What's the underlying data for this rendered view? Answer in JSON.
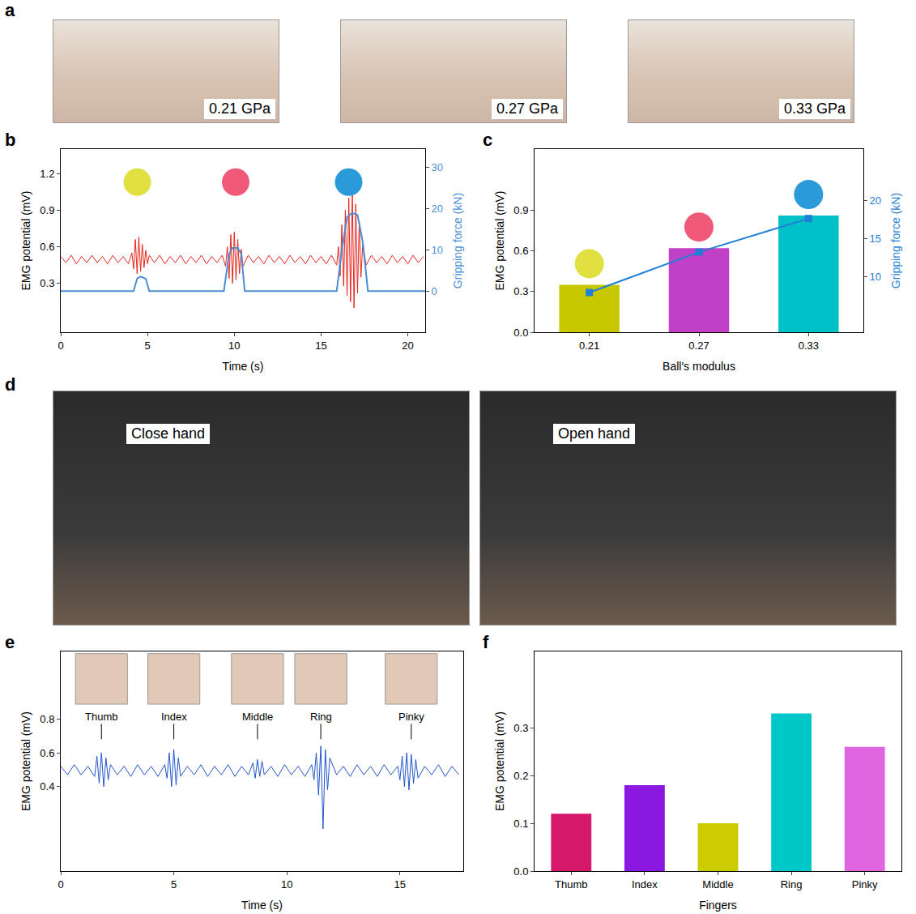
{
  "photo_panels": [
    {
      "panel_label": "a",
      "photos": [
        {
          "label": "0.21 GPa"
        },
        {
          "label": "0.27 GPa"
        },
        {
          "label": "0.33 GPa"
        }
      ]
    },
    {
      "panel_label": "d",
      "photos": [
        {
          "label": "Close hand"
        },
        {
          "label": "Open hand"
        }
      ]
    }
  ],
  "chart_data": [
    {
      "panel_label": "b",
      "type": "line",
      "x_label": "Time (s)",
      "y_label": "EMG potential (mV)",
      "y2_label": "Gripping force (kN)",
      "xlim": [
        0,
        21
      ],
      "xticks": [
        0,
        5,
        10,
        15,
        20
      ],
      "ylim": [
        -0.1,
        1.4
      ],
      "yticks": [
        0.3,
        0.6,
        0.9,
        1.2
      ],
      "y2lim": [
        -10,
        34.5
      ],
      "y2ticks": [
        0,
        10,
        20,
        30
      ],
      "grid": false,
      "series": [
        {
          "color": "#e8231b",
          "x": [
            0,
            0.3,
            0.6,
            0.9,
            1.2,
            1.5,
            1.8,
            2.1,
            2.4,
            2.7,
            3.0,
            3.3,
            3.6,
            3.9,
            4.1,
            4.2,
            4.3,
            4.4,
            4.5,
            4.6,
            4.7,
            4.8,
            4.9,
            5.0,
            5.1,
            5.4,
            5.7,
            6.0,
            6.3,
            6.6,
            6.9,
            7.2,
            7.5,
            7.8,
            8.1,
            8.4,
            8.7,
            9.0,
            9.3,
            9.5,
            9.6,
            9.7,
            9.8,
            9.9,
            10.0,
            10.1,
            10.2,
            10.3,
            10.4,
            10.5,
            10.8,
            11.1,
            11.4,
            11.7,
            12.0,
            12.3,
            12.6,
            12.9,
            13.2,
            13.5,
            13.8,
            14.1,
            14.4,
            14.7,
            15.0,
            15.3,
            15.6,
            15.9,
            16.0,
            16.1,
            16.2,
            16.3,
            16.4,
            16.5,
            16.6,
            16.7,
            16.8,
            16.9,
            17.0,
            17.1,
            17.2,
            17.3,
            17.4,
            17.6,
            17.9,
            18.2,
            18.5,
            18.8,
            19.1,
            19.4,
            19.7,
            20.0,
            20.3,
            20.6,
            20.9
          ],
          "values": [
            0.52,
            0.47,
            0.53,
            0.46,
            0.52,
            0.47,
            0.53,
            0.47,
            0.52,
            0.46,
            0.53,
            0.47,
            0.52,
            0.46,
            0.55,
            0.42,
            0.66,
            0.38,
            0.68,
            0.4,
            0.62,
            0.43,
            0.57,
            0.46,
            0.53,
            0.47,
            0.53,
            0.46,
            0.52,
            0.47,
            0.53,
            0.46,
            0.52,
            0.47,
            0.53,
            0.46,
            0.52,
            0.47,
            0.53,
            0.44,
            0.6,
            0.34,
            0.7,
            0.3,
            0.72,
            0.33,
            0.66,
            0.38,
            0.58,
            0.44,
            0.53,
            0.47,
            0.52,
            0.46,
            0.53,
            0.47,
            0.52,
            0.46,
            0.53,
            0.47,
            0.52,
            0.46,
            0.53,
            0.47,
            0.52,
            0.46,
            0.53,
            0.45,
            0.6,
            0.36,
            0.78,
            0.28,
            0.9,
            0.2,
            1.0,
            0.15,
            1.05,
            0.1,
            0.95,
            0.22,
            0.8,
            0.35,
            0.62,
            0.45,
            0.53,
            0.47,
            0.52,
            0.46,
            0.53,
            0.47,
            0.52,
            0.46,
            0.53,
            0.47,
            0.52
          ]
        },
        {
          "color": "#4a8fd6",
          "axis": "y2",
          "x": [
            0,
            4.2,
            4.4,
            4.6,
            4.9,
            5.1,
            9.4,
            9.7,
            9.9,
            10.2,
            10.4,
            10.6,
            15.9,
            16.2,
            16.5,
            16.8,
            17.1,
            17.4,
            17.7,
            21
          ],
          "values": [
            0,
            0,
            3,
            3.5,
            3,
            0,
            0,
            9,
            10.5,
            10.5,
            9,
            0,
            0,
            10,
            18,
            19,
            18.5,
            12,
            0,
            0
          ]
        }
      ]
    },
    {
      "panel_label": "c",
      "type": "bar",
      "x_label": "Ball′s modulus",
      "y_label": "EMG potential (mV)",
      "y2_label": "Gripping force (kN)",
      "categories": [
        "0.21",
        "0.27",
        "0.33"
      ],
      "ylim": [
        0,
        1.35
      ],
      "yticks": [
        {
          "value": 0,
          "label": "0.0"
        },
        0.3,
        0.6,
        0.9
      ],
      "y2lim": [
        2.7,
        26.7
      ],
      "y2ticks": [
        10,
        15,
        20
      ],
      "grid": false,
      "series": [
        {
          "colors": [
            "#c8c800",
            "#c040c8",
            "#00c0c8"
          ],
          "values": [
            0.35,
            0.62,
            0.86
          ]
        },
        {
          "type": "line",
          "marker": "square",
          "color": "#1f7fd6",
          "axis": "y2",
          "values": [
            7.9,
            13.2,
            17.6
          ]
        }
      ]
    },
    {
      "panel_label": "e",
      "type": "line",
      "x_label": "Time (s)",
      "y_label": "EMG potential (mV)",
      "xlim": [
        0,
        17.8
      ],
      "xticks": [
        0,
        5,
        10,
        15
      ],
      "ylim": [
        -0.1,
        1.2
      ],
      "yticks": [
        0.4,
        0.6,
        0.8
      ],
      "grid": false,
      "annotations": [
        {
          "text": "Thumb",
          "x": 1.8
        },
        {
          "text": "Index",
          "x": 5.0
        },
        {
          "text": "Middle",
          "x": 8.7
        },
        {
          "text": "Ring",
          "x": 11.5
        },
        {
          "text": "Pinky",
          "x": 15.5
        }
      ],
      "series": [
        {
          "color": "#2255cc",
          "x": [
            0,
            0.3,
            0.6,
            0.9,
            1.2,
            1.5,
            1.6,
            1.7,
            1.8,
            1.9,
            2.0,
            2.1,
            2.2,
            2.5,
            2.8,
            3.1,
            3.4,
            3.7,
            4.0,
            4.3,
            4.6,
            4.7,
            4.8,
            4.9,
            5.0,
            5.1,
            5.2,
            5.3,
            5.6,
            5.9,
            6.2,
            6.5,
            6.8,
            7.1,
            7.4,
            7.7,
            8.0,
            8.3,
            8.5,
            8.6,
            8.7,
            8.8,
            8.9,
            9.0,
            9.3,
            9.6,
            9.9,
            10.2,
            10.5,
            10.8,
            11.1,
            11.2,
            11.3,
            11.4,
            11.5,
            11.6,
            11.7,
            11.8,
            11.9,
            12.2,
            12.5,
            12.8,
            13.1,
            13.4,
            13.7,
            14.0,
            14.3,
            14.6,
            14.9,
            15.0,
            15.1,
            15.2,
            15.3,
            15.4,
            15.5,
            15.6,
            15.7,
            15.8,
            16.1,
            16.4,
            16.7,
            17.0,
            17.3,
            17.6
          ],
          "values": [
            0.52,
            0.47,
            0.53,
            0.47,
            0.52,
            0.46,
            0.58,
            0.42,
            0.6,
            0.4,
            0.57,
            0.44,
            0.53,
            0.47,
            0.52,
            0.46,
            0.53,
            0.47,
            0.52,
            0.46,
            0.53,
            0.45,
            0.6,
            0.4,
            0.62,
            0.41,
            0.57,
            0.46,
            0.52,
            0.47,
            0.53,
            0.46,
            0.52,
            0.47,
            0.53,
            0.46,
            0.52,
            0.47,
            0.54,
            0.45,
            0.56,
            0.46,
            0.55,
            0.47,
            0.52,
            0.46,
            0.53,
            0.47,
            0.52,
            0.46,
            0.53,
            0.44,
            0.6,
            0.35,
            0.64,
            0.15,
            0.62,
            0.38,
            0.57,
            0.47,
            0.52,
            0.46,
            0.53,
            0.47,
            0.52,
            0.46,
            0.53,
            0.47,
            0.52,
            0.44,
            0.58,
            0.4,
            0.6,
            0.38,
            0.59,
            0.42,
            0.56,
            0.45,
            0.52,
            0.47,
            0.53,
            0.46,
            0.52,
            0.47
          ]
        }
      ]
    },
    {
      "panel_label": "f",
      "type": "bar",
      "x_label": "Fingers",
      "y_label": "EMG potential (mV)",
      "categories": [
        "Thumb",
        "Index",
        "Middle",
        "Ring",
        "Pinky"
      ],
      "ylim": [
        0,
        0.46
      ],
      "yticks": [
        {
          "value": 0,
          "label": "0.0"
        },
        0.1,
        0.2,
        0.3
      ],
      "grid": false,
      "series": [
        {
          "colors": [
            "#d6186b",
            "#8a18e0",
            "#cccc00",
            "#00c8c8",
            "#e066e0"
          ],
          "values": [
            0.12,
            0.18,
            0.1,
            0.33,
            0.26
          ]
        }
      ]
    }
  ]
}
